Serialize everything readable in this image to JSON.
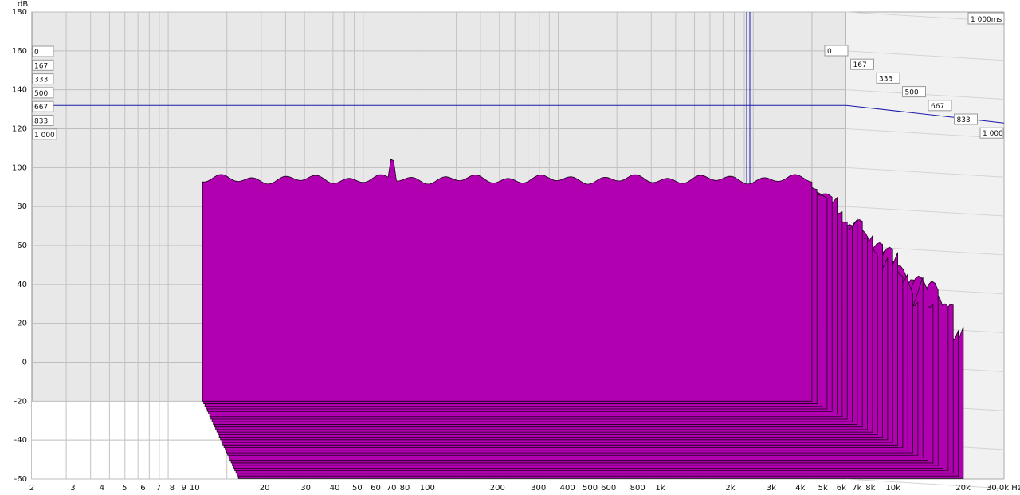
{
  "chart_data": {
    "type": "waterfall",
    "ylabel": "dB",
    "xunit": "Hz",
    "ylim": [
      -60,
      180
    ],
    "yticks": [
      180,
      160,
      140,
      120,
      100,
      80,
      60,
      40,
      20,
      0,
      -20,
      -40,
      -60
    ],
    "xlim": [
      2,
      30000
    ],
    "xscale": "log",
    "xticks": [
      {
        "v": 2,
        "t": "2"
      },
      {
        "v": 3,
        "t": "3"
      },
      {
        "v": 4,
        "t": "4"
      },
      {
        "v": 5,
        "t": "5"
      },
      {
        "v": 6,
        "t": "6"
      },
      {
        "v": 7,
        "t": "7"
      },
      {
        "v": 8,
        "t": "8"
      },
      {
        "v": 9,
        "t": "9"
      },
      {
        "v": 10,
        "t": "10"
      },
      {
        "v": 20,
        "t": "20"
      },
      {
        "v": 30,
        "t": "30"
      },
      {
        "v": 40,
        "t": "40"
      },
      {
        "v": 50,
        "t": "50"
      },
      {
        "v": 60,
        "t": "60"
      },
      {
        "v": 70,
        "t": "70"
      },
      {
        "v": 80,
        "t": "80"
      },
      {
        "v": 100,
        "t": "100"
      },
      {
        "v": 200,
        "t": "200"
      },
      {
        "v": 300,
        "t": "300"
      },
      {
        "v": 400,
        "t": "400"
      },
      {
        "v": 500,
        "t": "500"
      },
      {
        "v": 600,
        "t": "600"
      },
      {
        "v": 800,
        "t": "800"
      },
      {
        "v": 1000,
        "t": "1k"
      },
      {
        "v": 2000,
        "t": "2k"
      },
      {
        "v": 3000,
        "t": "3k"
      },
      {
        "v": 4000,
        "t": "4k"
      },
      {
        "v": 5000,
        "t": "5k"
      },
      {
        "v": 6000,
        "t": "6k"
      },
      {
        "v": 7000,
        "t": "7k"
      },
      {
        "v": 8000,
        "t": "8k"
      },
      {
        "v": 10000,
        "t": "10k"
      },
      {
        "v": 20000,
        "t": "20k"
      },
      {
        "v": 30000,
        "t": "30,0k Hz"
      }
    ],
    "time_labels": [
      "0",
      "167",
      "333",
      "500",
      "667",
      "833",
      "1 000"
    ],
    "time_end_label": "1 000ms",
    "freq_range": [
      15,
      20000
    ],
    "n_slices": 31,
    "slice_time_step_ms": 33.3,
    "front_level_db": 94,
    "back_level_db": 26,
    "fill_color": "#b000b0",
    "line_color": "#1a001a",
    "cursor_color": "#1a1aa8",
    "floor_db": -20,
    "grid": true
  }
}
